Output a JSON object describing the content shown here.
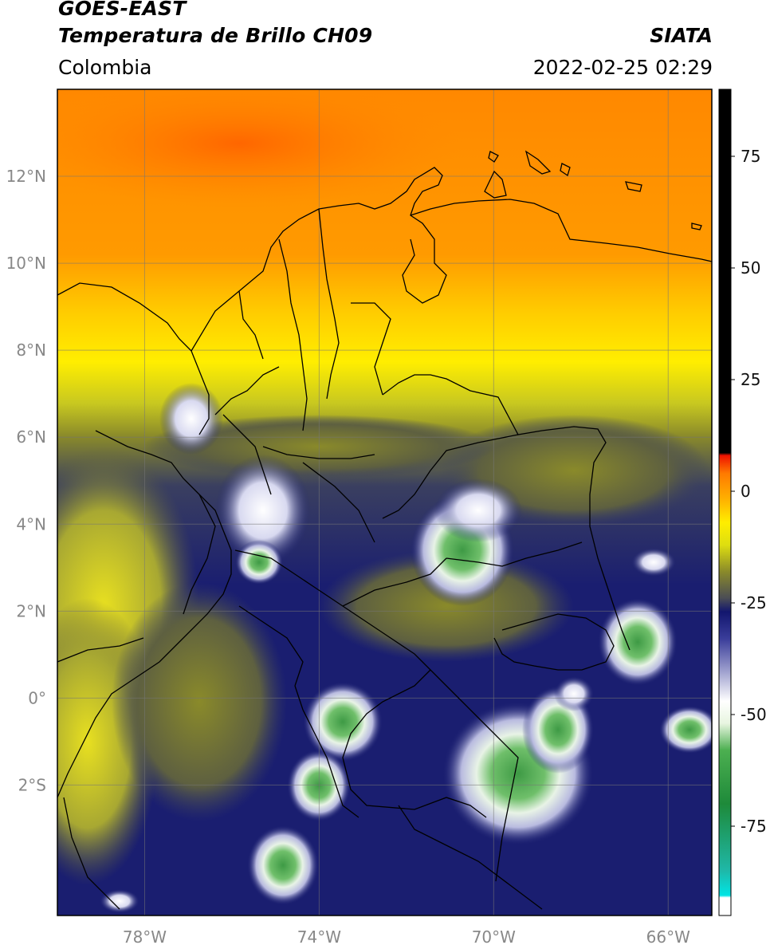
{
  "header": {
    "satellite": "GOES-EAST",
    "product": "Temperatura de Brillo CH09",
    "organization": "SIATA",
    "region": "Colombia",
    "datetime": "2022-02-25 02:29"
  },
  "map": {
    "lon_range": [
      -80,
      -65
    ],
    "lat_range": [
      -5,
      14
    ],
    "lon_ticks": [
      {
        "value": -78,
        "label": "78°W"
      },
      {
        "value": -74,
        "label": "74°W"
      },
      {
        "value": -70,
        "label": "70°W"
      },
      {
        "value": -66,
        "label": "66°W"
      }
    ],
    "lat_ticks": [
      {
        "value": 12,
        "label": "12°N"
      },
      {
        "value": 10,
        "label": "10°N"
      },
      {
        "value": 8,
        "label": "8°N"
      },
      {
        "value": 6,
        "label": "6°N"
      },
      {
        "value": 4,
        "label": "4°N"
      },
      {
        "value": 2,
        "label": "2°N"
      },
      {
        "value": 0,
        "label": "0°"
      },
      {
        "value": -2,
        "label": "2°S"
      }
    ],
    "grid": true
  },
  "colorbar": {
    "range": [
      -95,
      90
    ],
    "ticks": [
      {
        "value": 75,
        "label": "75"
      },
      {
        "value": 50,
        "label": "50"
      },
      {
        "value": 25,
        "label": "25"
      },
      {
        "value": 0,
        "label": "0"
      },
      {
        "value": -25,
        "label": "-25"
      },
      {
        "value": -50,
        "label": "-50"
      },
      {
        "value": -75,
        "label": "-75"
      }
    ],
    "stops": [
      {
        "value": -95,
        "color": "#ffffff"
      },
      {
        "value": -91,
        "color": "#ffffff"
      },
      {
        "value": -90.5,
        "color": "#00e5e5"
      },
      {
        "value": -85,
        "color": "#1fb8a8"
      },
      {
        "value": -70,
        "color": "#1e8a3a"
      },
      {
        "value": -58,
        "color": "#4caf50"
      },
      {
        "value": -52,
        "color": "#e8f5e0"
      },
      {
        "value": -47,
        "color": "#ffffff"
      },
      {
        "value": -40,
        "color": "#9a9ccc"
      },
      {
        "value": -33,
        "color": "#3a3d9a"
      },
      {
        "value": -27,
        "color": "#12166e"
      },
      {
        "value": -24,
        "color": "#4a4c55"
      },
      {
        "value": -18,
        "color": "#8a8a2a"
      },
      {
        "value": -12,
        "color": "#dede10"
      },
      {
        "value": -7,
        "color": "#ffee00"
      },
      {
        "value": -2,
        "color": "#ffb300"
      },
      {
        "value": 4,
        "color": "#ff7a00"
      },
      {
        "value": 8,
        "color": "#ee1100"
      },
      {
        "value": 8.6,
        "color": "#000000"
      },
      {
        "value": 90,
        "color": "#000000"
      }
    ]
  }
}
